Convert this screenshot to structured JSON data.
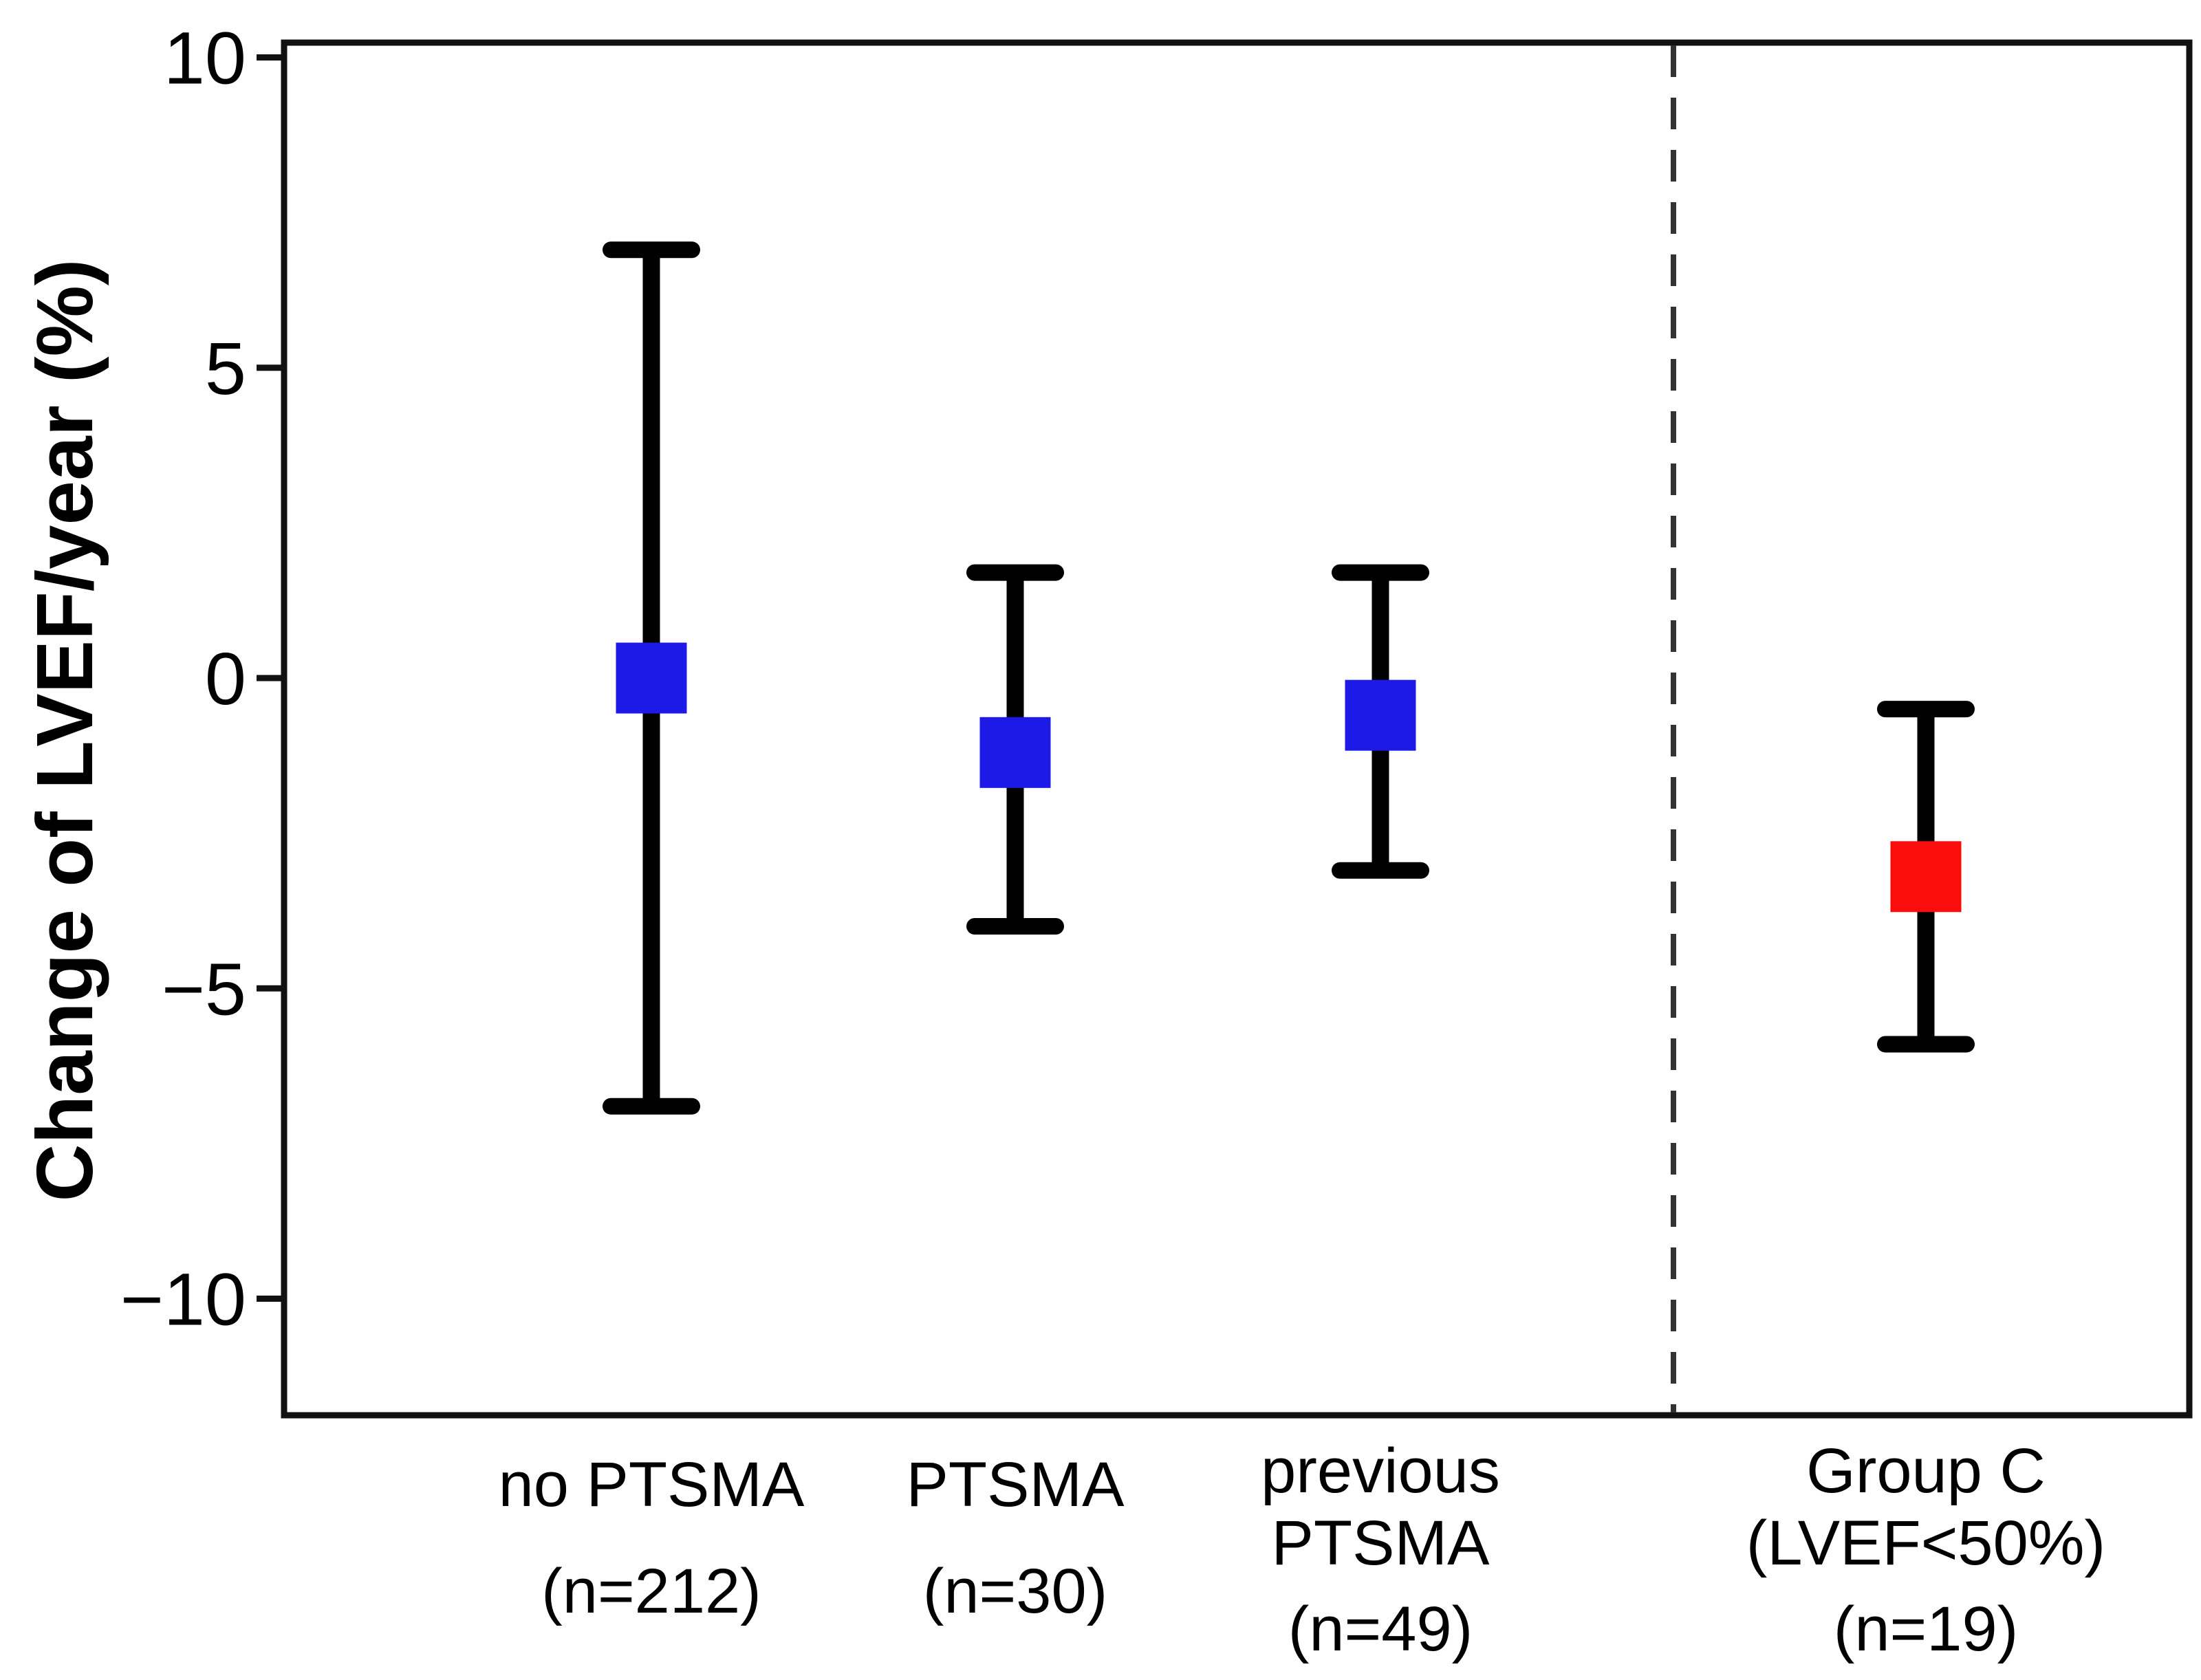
{
  "chart_data": {
    "type": "scatter",
    "subtype": "mean-with-error-bars",
    "title": "",
    "xlabel": "",
    "ylabel": "Change of LVEF/year (%)",
    "ylim": [
      -11.9,
      10.3
    ],
    "grid": false,
    "legend": "none",
    "yticks": [
      {
        "value": 10,
        "label": "10"
      },
      {
        "value": 5,
        "label": "5"
      },
      {
        "value": 0,
        "label": "0"
      },
      {
        "value": -5,
        "label": "−5"
      },
      {
        "value": -10,
        "label": "−10"
      }
    ],
    "series": [
      {
        "name": "no PTSMA",
        "label_lines": [
          "no PTSMA",
          "(n=212)"
        ],
        "n": 212,
        "mean": 0.0,
        "upper": 6.9,
        "lower": -6.9,
        "marker": "square",
        "color": "#1d1ae8"
      },
      {
        "name": "PTSMA",
        "label_lines": [
          "PTSMA",
          "(n=30)"
        ],
        "n": 30,
        "mean": -1.2,
        "upper": 1.7,
        "lower": -4.0,
        "marker": "square",
        "color": "#1d1ae8"
      },
      {
        "name": "previous PTSMA",
        "label_lines": [
          "previous",
          "PTSMA",
          "(n=49)"
        ],
        "n": 49,
        "mean": -0.6,
        "upper": 1.7,
        "lower": -3.1,
        "marker": "square",
        "color": "#1d1ae8"
      },
      {
        "name": "Group C (LVEF<50%)",
        "label_lines": [
          "Group C",
          "(LVEF<50%)",
          "(n=19)"
        ],
        "n": 19,
        "mean": -3.2,
        "upper": -0.5,
        "lower": -5.9,
        "marker": "square",
        "color": "#fb0d0d"
      }
    ],
    "separator": {
      "after_category_index": 2,
      "style": "dashed",
      "color": "#333333"
    },
    "colors": {
      "axis": "#111111",
      "error_bar": "#000000",
      "blue_marker": "#1d1ae8",
      "red_marker": "#fb0d0d",
      "background": "#ffffff"
    }
  }
}
